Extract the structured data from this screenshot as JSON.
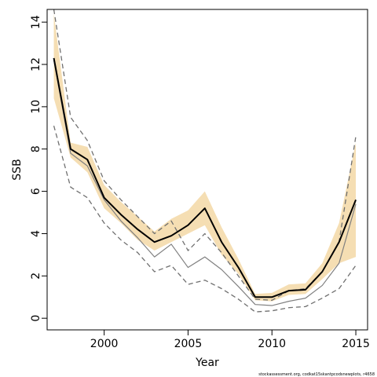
{
  "chart_data": {
    "type": "line",
    "title": "",
    "xlabel": "Year",
    "ylabel": "SSB",
    "xlim": [
      1996.6,
      2015.7
    ],
    "ylim": [
      -0.55,
      14.6
    ],
    "x_ticks": [
      2000,
      2005,
      2010,
      2015
    ],
    "y_ticks": [
      0,
      2,
      4,
      6,
      8,
      10,
      12,
      14
    ],
    "x": [
      1997,
      1998,
      1999,
      2000,
      2001,
      2002,
      2003,
      2004,
      2005,
      2006,
      2007,
      2008,
      2009,
      2010,
      2011,
      2012,
      2013,
      2014,
      2015
    ],
    "band": {
      "color": "#f5deb3",
      "lower": [
        10.4,
        7.6,
        6.9,
        5.2,
        4.5,
        3.7,
        3.2,
        3.6,
        4.0,
        4.4,
        3.0,
        2.1,
        0.85,
        0.8,
        1.1,
        1.15,
        1.85,
        2.6,
        2.9
      ],
      "upper": [
        14.4,
        8.3,
        8.1,
        6.3,
        5.5,
        4.8,
        4.1,
        4.7,
        5.1,
        6.0,
        4.3,
        2.8,
        1.15,
        1.2,
        1.6,
        1.65,
        2.6,
        4.5,
        8.3
      ]
    },
    "series": [
      {
        "style": "solid-bold",
        "color": "#000000",
        "values": [
          12.3,
          8.0,
          7.5,
          5.7,
          4.9,
          4.2,
          3.6,
          3.9,
          4.4,
          5.2,
          3.6,
          2.4,
          1.0,
          1.0,
          1.3,
          1.35,
          2.2,
          3.6,
          5.6
        ]
      },
      {
        "style": "solid-thin",
        "color": "#808080",
        "values": [
          12.2,
          7.8,
          7.2,
          5.6,
          4.6,
          3.8,
          2.9,
          3.5,
          2.4,
          2.9,
          2.3,
          1.5,
          0.65,
          0.6,
          0.8,
          0.95,
          1.55,
          2.6,
          5.4
        ]
      },
      {
        "style": "dashed",
        "color": "#707070",
        "values": [
          9.1,
          6.2,
          5.7,
          4.5,
          3.7,
          3.1,
          2.2,
          2.5,
          1.6,
          1.8,
          1.4,
          0.9,
          0.3,
          0.35,
          0.5,
          0.55,
          0.95,
          1.4,
          2.5
        ]
      },
      {
        "style": "dashed",
        "color": "#707070",
        "values": [
          14.6,
          9.5,
          8.4,
          6.5,
          5.6,
          4.8,
          4.0,
          4.6,
          3.2,
          4.0,
          3.1,
          2.0,
          0.9,
          0.85,
          1.3,
          1.4,
          2.2,
          3.6,
          8.6
        ]
      }
    ],
    "grid": false,
    "legend": "none"
  },
  "caption": "stockassessment.org, codkat15skantpcodsnewplots, r4658"
}
